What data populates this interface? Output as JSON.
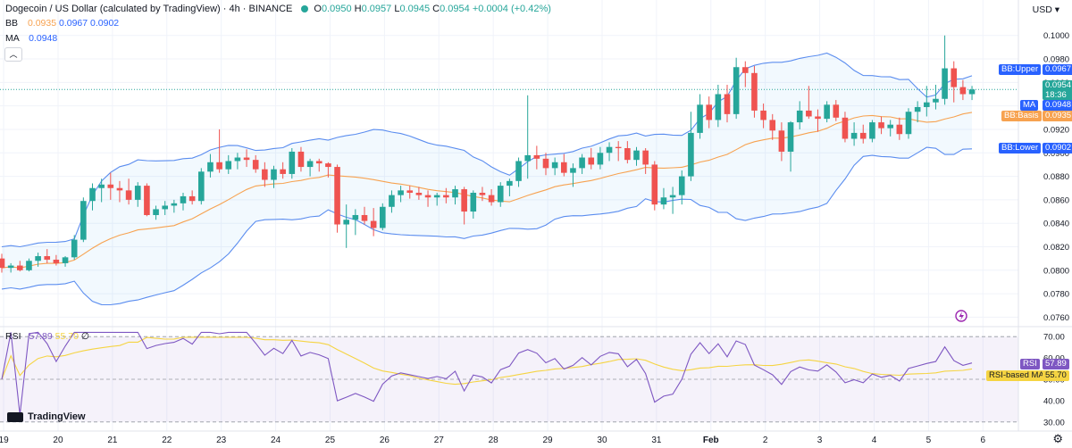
{
  "header": {
    "title": "Dogecoin / US Dollar (calculated by TradingView) · 4h · BINANCE",
    "open_label": "O",
    "open": "0.0950",
    "high_label": "H",
    "high": "0.0957",
    "low_label": "L",
    "low": "0.0945",
    "close_label": "C",
    "close": "0.0954",
    "change": "+0.0004 (+0.42%)"
  },
  "indicators": {
    "bb_label": "BB",
    "bb_basis": "0.0935",
    "bb_upper": "0.0967",
    "bb_lower": "0.0902",
    "ma_label": "MA",
    "ma_value": "0.0948",
    "rsi_label": "RSI",
    "rsi_value": "57.89",
    "rsi_ma": "55.70",
    "rsi_extra": "∅"
  },
  "currency": "USD",
  "brand": "TradingView",
  "price_tags": {
    "bb_upper_label": "BB:Upper",
    "bb_upper_value": "0.0967",
    "current_price": "0.0954",
    "countdown": "18:36",
    "ma_label": "MA",
    "ma_value": "0.0948",
    "bb_basis_label": "BB:Basis",
    "bb_basis_value": "0.0935",
    "bb_lower_label": "BB:Lower",
    "bb_lower_value": "0.0902",
    "rsi_label": "RSI",
    "rsi_value": "57.89",
    "rsi_ma_label": "RSI-based MA",
    "rsi_ma_value": "55.70"
  },
  "colors": {
    "up": "#26a69a",
    "down": "#ef5350",
    "bb": "#5b8def",
    "basis": "#f7a250",
    "ma": "#2962ff",
    "rsi": "#7e57c2",
    "rsi_ma": "#f5d442"
  },
  "icons": {
    "settings": "gear-icon",
    "alert": "lightning-icon",
    "collapse": "chevron-up-icon"
  },
  "chart_data": {
    "type": "candlestick",
    "interval": "4h",
    "ylim": [
      0.0755,
      0.1015
    ],
    "y_ticks": [
      "0.1000",
      "0.0980",
      "0.0960",
      "0.0940",
      "0.0920",
      "0.0900",
      "0.0880",
      "0.0860",
      "0.0840",
      "0.0820",
      "0.0800",
      "0.0780",
      "0.0760"
    ],
    "x_ticks": [
      "19",
      "20",
      "21",
      "22",
      "23",
      "24",
      "25",
      "26",
      "27",
      "28",
      "29",
      "30",
      "31",
      "Feb",
      "2",
      "3",
      "4",
      "5",
      "6"
    ],
    "first_tick_candle_index": 0,
    "candles_per_day": 6,
    "ohlc": [
      [
        0.081,
        0.0814,
        0.0798,
        0.0802
      ],
      [
        0.0802,
        0.0806,
        0.0798,
        0.0804
      ],
      [
        0.0804,
        0.0808,
        0.0799,
        0.08
      ],
      [
        0.08,
        0.081,
        0.0799,
        0.0808
      ],
      [
        0.0808,
        0.0815,
        0.0803,
        0.0812
      ],
      [
        0.0812,
        0.0818,
        0.0806,
        0.0809
      ],
      [
        0.0809,
        0.0813,
        0.0804,
        0.0806
      ],
      [
        0.0806,
        0.0812,
        0.0803,
        0.0811
      ],
      [
        0.0811,
        0.083,
        0.0809,
        0.0826
      ],
      [
        0.0826,
        0.0862,
        0.0824,
        0.0859
      ],
      [
        0.0859,
        0.0874,
        0.0851,
        0.087
      ],
      [
        0.087,
        0.0878,
        0.0858,
        0.0873
      ],
      [
        0.0873,
        0.0883,
        0.086,
        0.087
      ],
      [
        0.087,
        0.0876,
        0.0858,
        0.0868
      ],
      [
        0.0868,
        0.0878,
        0.0856,
        0.086
      ],
      [
        0.086,
        0.0875,
        0.0854,
        0.0872
      ],
      [
        0.0872,
        0.0874,
        0.0846,
        0.0847
      ],
      [
        0.0847,
        0.0855,
        0.0843,
        0.0852
      ],
      [
        0.0852,
        0.0859,
        0.0847,
        0.0855
      ],
      [
        0.0855,
        0.086,
        0.0849,
        0.0857
      ],
      [
        0.0857,
        0.0866,
        0.0851,
        0.0863
      ],
      [
        0.0863,
        0.0868,
        0.0856,
        0.0859
      ],
      [
        0.0859,
        0.0887,
        0.0856,
        0.0884
      ],
      [
        0.0884,
        0.0899,
        0.0879,
        0.0892
      ],
      [
        0.0892,
        0.092,
        0.0883,
        0.0886
      ],
      [
        0.0886,
        0.0898,
        0.0882,
        0.0893
      ],
      [
        0.0893,
        0.09,
        0.0886,
        0.0896
      ],
      [
        0.0896,
        0.0903,
        0.0888,
        0.0894
      ],
      [
        0.0894,
        0.0898,
        0.0883,
        0.0886
      ],
      [
        0.0886,
        0.0892,
        0.0871,
        0.0877
      ],
      [
        0.0877,
        0.0889,
        0.087,
        0.0886
      ],
      [
        0.0886,
        0.0892,
        0.0878,
        0.0882
      ],
      [
        0.0882,
        0.0904,
        0.0878,
        0.0901
      ],
      [
        0.0901,
        0.0905,
        0.0884,
        0.0888
      ],
      [
        0.0888,
        0.0895,
        0.088,
        0.0893
      ],
      [
        0.0893,
        0.0895,
        0.0884,
        0.0891
      ],
      [
        0.0891,
        0.0892,
        0.0879,
        0.0888
      ],
      [
        0.0888,
        0.089,
        0.0832,
        0.0839
      ],
      [
        0.0839,
        0.0856,
        0.0819,
        0.0843
      ],
      [
        0.0843,
        0.0852,
        0.083,
        0.0847
      ],
      [
        0.0847,
        0.0854,
        0.0839,
        0.0842
      ],
      [
        0.0842,
        0.0853,
        0.0829,
        0.0836
      ],
      [
        0.0836,
        0.0857,
        0.0834,
        0.0854
      ],
      [
        0.0854,
        0.0868,
        0.0849,
        0.0864
      ],
      [
        0.0864,
        0.0872,
        0.0858,
        0.0868
      ],
      [
        0.0868,
        0.0872,
        0.0861,
        0.0866
      ],
      [
        0.0866,
        0.0871,
        0.086,
        0.0864
      ],
      [
        0.0864,
        0.0868,
        0.0854,
        0.0862
      ],
      [
        0.0862,
        0.0866,
        0.0855,
        0.0864
      ],
      [
        0.0864,
        0.087,
        0.0857,
        0.0862
      ],
      [
        0.0862,
        0.0872,
        0.0856,
        0.0869
      ],
      [
        0.0869,
        0.0871,
        0.0839,
        0.085
      ],
      [
        0.085,
        0.0868,
        0.0844,
        0.0866
      ],
      [
        0.0866,
        0.0871,
        0.0859,
        0.0864
      ],
      [
        0.0864,
        0.0869,
        0.0855,
        0.0858
      ],
      [
        0.0858,
        0.0875,
        0.0854,
        0.0872
      ],
      [
        0.0872,
        0.0878,
        0.0863,
        0.0876
      ],
      [
        0.0876,
        0.0896,
        0.0871,
        0.0893
      ],
      [
        0.0893,
        0.0949,
        0.0878,
        0.0898
      ],
      [
        0.0898,
        0.0906,
        0.0886,
        0.0895
      ],
      [
        0.0895,
        0.09,
        0.0881,
        0.0887
      ],
      [
        0.0887,
        0.0896,
        0.0881,
        0.0892
      ],
      [
        0.0892,
        0.0899,
        0.088,
        0.0883
      ],
      [
        0.0883,
        0.0891,
        0.0871,
        0.0887
      ],
      [
        0.0887,
        0.0899,
        0.0882,
        0.0896
      ],
      [
        0.0896,
        0.0904,
        0.0886,
        0.089
      ],
      [
        0.089,
        0.0905,
        0.0886,
        0.09
      ],
      [
        0.09,
        0.0909,
        0.0893,
        0.0905
      ],
      [
        0.0905,
        0.091,
        0.0893,
        0.0904
      ],
      [
        0.0904,
        0.091,
        0.0891,
        0.0894
      ],
      [
        0.0894,
        0.0905,
        0.0889,
        0.0902
      ],
      [
        0.0902,
        0.0904,
        0.0882,
        0.089
      ],
      [
        0.089,
        0.0893,
        0.0851,
        0.0856
      ],
      [
        0.0856,
        0.087,
        0.0852,
        0.0862
      ],
      [
        0.0862,
        0.0871,
        0.0848,
        0.0864
      ],
      [
        0.0864,
        0.0885,
        0.0856,
        0.088
      ],
      [
        0.088,
        0.0935,
        0.0876,
        0.0917
      ],
      [
        0.0917,
        0.095,
        0.0912,
        0.0941
      ],
      [
        0.0941,
        0.0948,
        0.0921,
        0.0928
      ],
      [
        0.0928,
        0.0958,
        0.0922,
        0.095
      ],
      [
        0.095,
        0.0958,
        0.0926,
        0.0933
      ],
      [
        0.0933,
        0.0981,
        0.0929,
        0.0973
      ],
      [
        0.0973,
        0.0978,
        0.0956,
        0.0968
      ],
      [
        0.0968,
        0.0974,
        0.093,
        0.0936
      ],
      [
        0.0936,
        0.0942,
        0.0921,
        0.0928
      ],
      [
        0.0928,
        0.0933,
        0.0911,
        0.0919
      ],
      [
        0.0919,
        0.0926,
        0.0893,
        0.0901
      ],
      [
        0.0901,
        0.0927,
        0.0884,
        0.0926
      ],
      [
        0.0926,
        0.0944,
        0.092,
        0.0936
      ],
      [
        0.0936,
        0.0957,
        0.0929,
        0.0931
      ],
      [
        0.0931,
        0.0937,
        0.0918,
        0.0929
      ],
      [
        0.0929,
        0.0944,
        0.0926,
        0.0941
      ],
      [
        0.0941,
        0.0945,
        0.0927,
        0.093
      ],
      [
        0.093,
        0.0935,
        0.0909,
        0.0912
      ],
      [
        0.0912,
        0.0926,
        0.0906,
        0.0917
      ],
      [
        0.0917,
        0.0924,
        0.0908,
        0.0912
      ],
      [
        0.0912,
        0.0928,
        0.0909,
        0.0926
      ],
      [
        0.0926,
        0.0931,
        0.0916,
        0.0921
      ],
      [
        0.0921,
        0.0928,
        0.0914,
        0.0924
      ],
      [
        0.0924,
        0.093,
        0.0911,
        0.0916
      ],
      [
        0.0916,
        0.0938,
        0.0912,
        0.0935
      ],
      [
        0.0935,
        0.0944,
        0.0926,
        0.0939
      ],
      [
        0.0939,
        0.0957,
        0.0931,
        0.0943
      ],
      [
        0.0943,
        0.0958,
        0.0937,
        0.0946
      ],
      [
        0.0946,
        0.1,
        0.0941,
        0.0972
      ],
      [
        0.0972,
        0.0978,
        0.0943,
        0.0956
      ],
      [
        0.0956,
        0.0962,
        0.0945,
        0.095
      ],
      [
        0.095,
        0.0957,
        0.0945,
        0.0954
      ]
    ],
    "bb_upper_end": 0.0967,
    "bb_basis_end": 0.0935,
    "bb_lower_end": 0.0902,
    "rsi": {
      "ylim": [
        27,
        73
      ],
      "levels": [
        70,
        50,
        30
      ],
      "tick_labels": [
        "70.00",
        "60.00",
        "50.00",
        "40.00",
        "30.00"
      ],
      "rsi_end": 57.89,
      "ma_end": 55.7
    }
  }
}
